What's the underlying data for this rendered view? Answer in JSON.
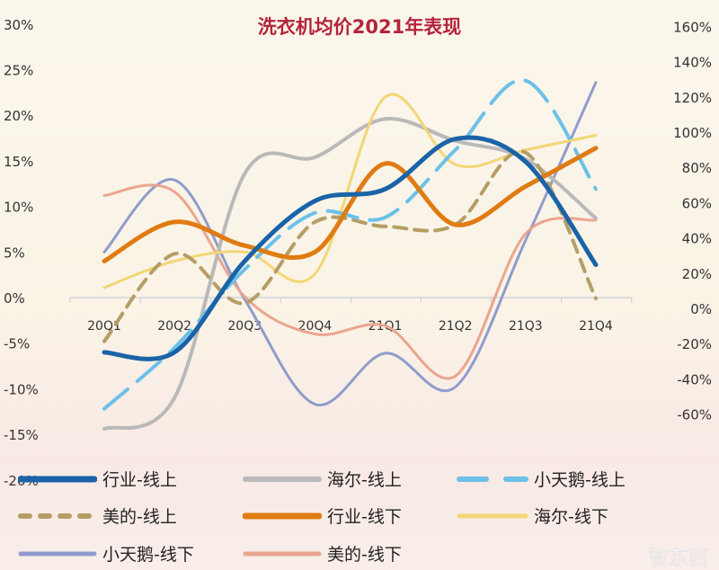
{
  "chart_data": {
    "type": "line",
    "title": "洗衣机均价2021年表现",
    "categories": [
      "20Q1",
      "20Q2",
      "20Q3",
      "20Q4",
      "21Q1",
      "21Q2",
      "21Q3",
      "21Q4"
    ],
    "y_left": {
      "ticks": [
        "30%",
        "25%",
        "20%",
        "15%",
        "10%",
        "5%",
        "0%",
        "-5%",
        "-10%",
        "-15%",
        "-20%"
      ],
      "range": [
        -20,
        30
      ]
    },
    "y_right": {
      "ticks": [
        "160%",
        "140%",
        "120%",
        "100%",
        "80%",
        "60%",
        "40%",
        "20%",
        "0%",
        "-20%",
        "-40%",
        "-60%"
      ],
      "range": [
        -60,
        160
      ]
    },
    "grid": false,
    "legend_position": "bottom",
    "series": [
      {
        "name": "行业-线上",
        "color": "#1a63a8",
        "dash": "solid",
        "width": 5,
        "values": [
          -6.0,
          -6.0,
          4.0,
          10.6,
          11.9,
          17.4,
          14.9,
          3.6
        ]
      },
      {
        "name": "海尔-线上",
        "color": "#b9b9b9",
        "dash": "solid",
        "width": 4,
        "values": [
          -14.4,
          -11.0,
          13.6,
          15.4,
          19.6,
          17.2,
          15.2,
          8.7
        ]
      },
      {
        "name": "小天鹅-线上",
        "color": "#6cc0e8",
        "dash": "dashed-long",
        "width": 4,
        "values": [
          -12.2,
          -5.5,
          3.1,
          9.3,
          8.8,
          16.2,
          23.8,
          11.9
        ]
      },
      {
        "name": "美的-线上",
        "color": "#b59d66",
        "dash": "dashed",
        "width": 4,
        "values": [
          -4.8,
          4.8,
          -0.6,
          8.3,
          7.8,
          8.0,
          15.9,
          -0.1
        ]
      },
      {
        "name": "行业-线下",
        "color": "#e07b12",
        "dash": "solid",
        "width": 5,
        "values": [
          4.0,
          8.3,
          5.7,
          5.0,
          14.7,
          8.0,
          12.2,
          16.4
        ]
      },
      {
        "name": "海尔-线下",
        "color": "#f3d675",
        "dash": "solid",
        "width": 3,
        "values": [
          1.1,
          4.0,
          5.0,
          2.6,
          22.0,
          14.6,
          16.2,
          17.8
        ]
      },
      {
        "name": "小天鹅-线下",
        "color": "#8f9ccc",
        "dash": "solid",
        "width": 3,
        "values": [
          5.0,
          12.9,
          -0.2,
          -11.7,
          -6.1,
          -9.8,
          6.3,
          23.6
        ]
      },
      {
        "name": "美的-线下",
        "color": "#eaa58f",
        "dash": "solid",
        "width": 3,
        "values": [
          11.2,
          11.6,
          0.1,
          -4.0,
          -3.1,
          -8.6,
          7.0,
          8.5
        ]
      }
    ]
  },
  "watermark": "智东西"
}
